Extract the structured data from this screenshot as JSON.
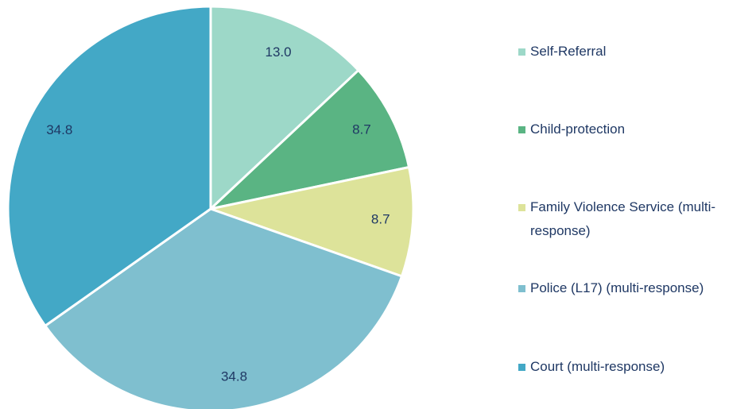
{
  "chart_data": {
    "type": "pie",
    "categories": [
      "Self-Referral",
      "Child-protection",
      "Family Violence Service (multi-response)",
      "Police (L17) (multi-response)",
      "Court (multi-response)"
    ],
    "values": [
      13.0,
      8.7,
      8.7,
      34.8,
      34.8
    ],
    "value_labels": [
      "13.0",
      "8.7",
      "8.7",
      "34.8",
      "34.8"
    ],
    "colors": [
      "#9dd8c8",
      "#5ab483",
      "#dde39a",
      "#7fbfcf",
      "#43a8c6"
    ],
    "legend": "right"
  }
}
